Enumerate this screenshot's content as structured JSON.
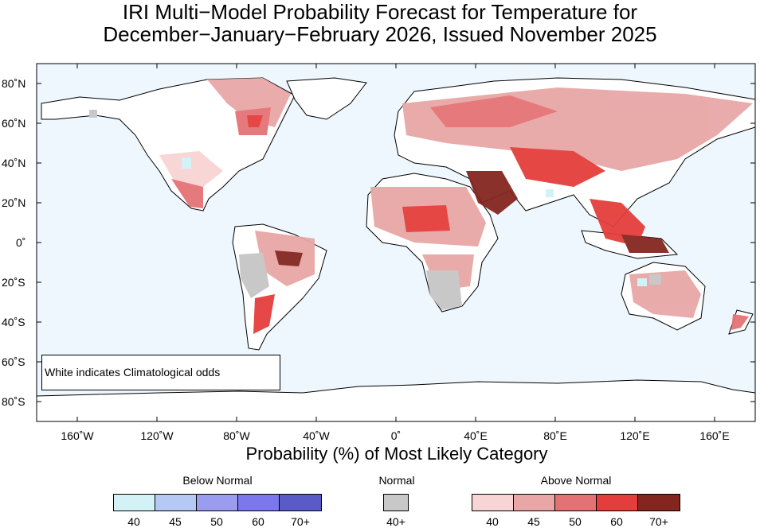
{
  "title_line1": "IRI Multi−Model Probability Forecast for Temperature for",
  "title_line2": "December−January−February 2026, Issued November 2025",
  "note": "White indicates Climatological odds",
  "x_axis_title": "Probability (%) of Most Likely Category",
  "lat_ticks": [
    "80˚N",
    "60˚N",
    "40˚N",
    "20˚N",
    "0˚",
    "20˚S",
    "40˚S",
    "60˚S",
    "80˚S"
  ],
  "lon_ticks": [
    "160˚W",
    "120˚W",
    "80˚W",
    "40˚W",
    "0˚",
    "40˚E",
    "80˚E",
    "120˚E",
    "160˚E"
  ],
  "legend": {
    "below": {
      "title": "Below Normal",
      "labels": [
        "40",
        "45",
        "50",
        "60",
        "70+"
      ],
      "colors": [
        "#d2f2f8",
        "#b6c8f4",
        "#9a9cf0",
        "#7a78ec",
        "#5a5ac8"
      ]
    },
    "normal": {
      "title": "Normal",
      "labels": [
        "40+"
      ],
      "colors": [
        "#c8c8c8"
      ]
    },
    "above": {
      "title": "Above Normal",
      "labels": [
        "40",
        "45",
        "50",
        "60",
        "70+"
      ],
      "colors": [
        "#f8d4d4",
        "#e8a6a6",
        "#e47274",
        "#e43e3c",
        "#842620"
      ]
    }
  },
  "colors": {
    "ocean": "#eef7fd",
    "land_border": "#000000"
  }
}
